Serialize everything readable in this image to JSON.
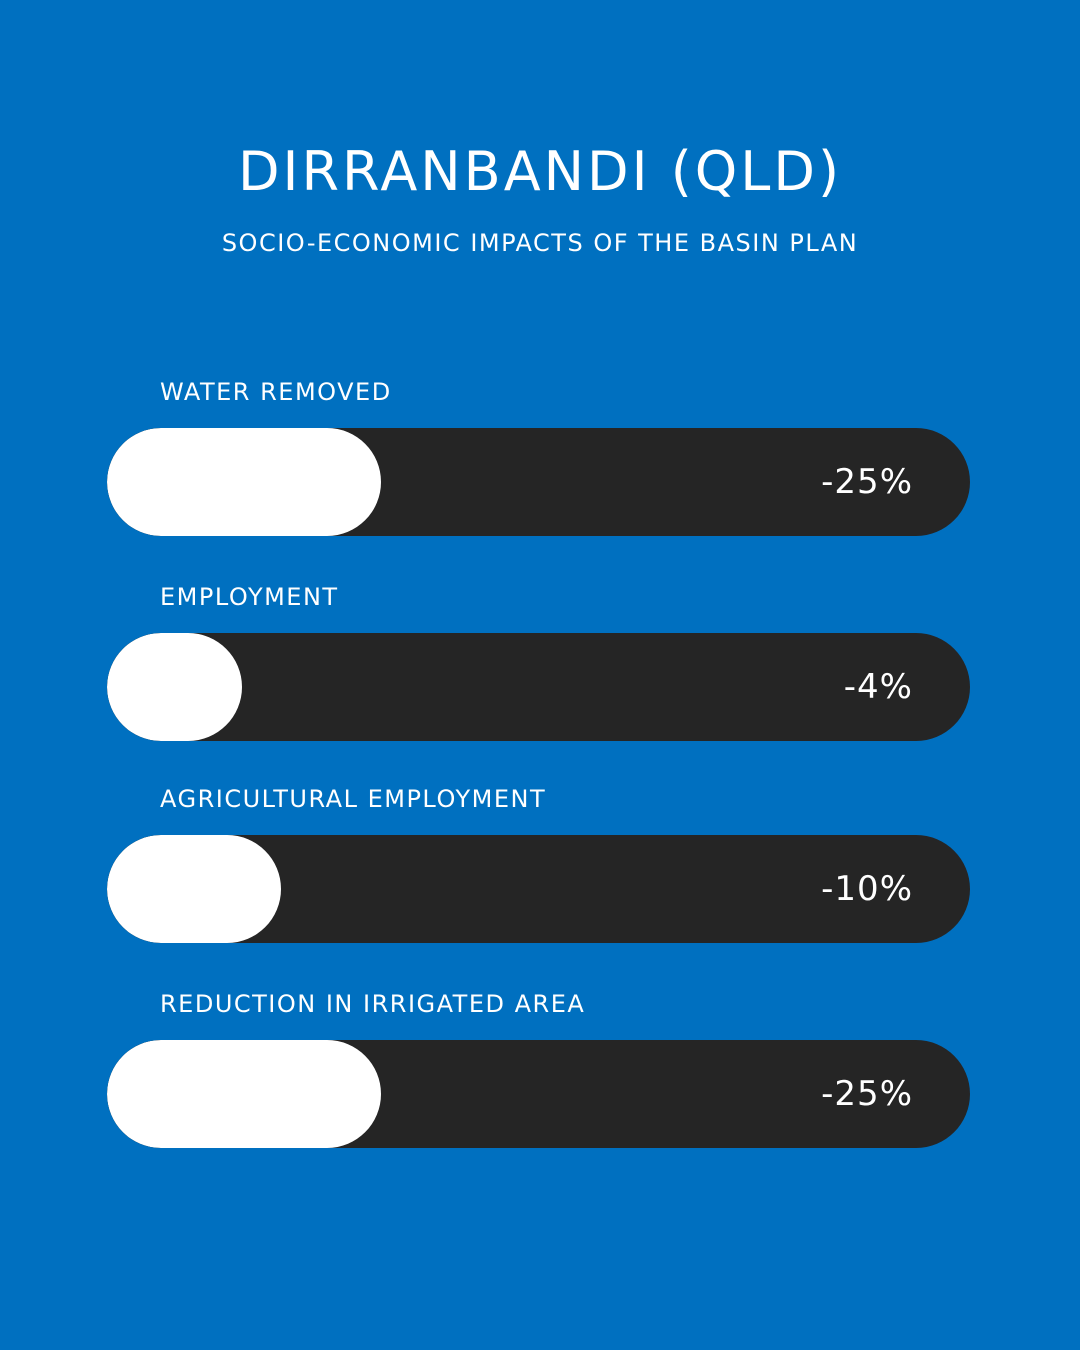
{
  "title": "DIRRANBANDI (QLD)",
  "subtitle": "SOCIO-ECONOMIC IMPACTS OF THE BASIN PLAN",
  "colors": {
    "background": "#0070c0",
    "track": "#252525",
    "fill": "#ffffff",
    "text": "#ffffff"
  },
  "chart_data": {
    "type": "bar",
    "orientation": "horizontal",
    "title": "DIRRANBANDI (QLD)",
    "subtitle": "SOCIO-ECONOMIC IMPACTS OF THE BASIN PLAN",
    "categories": [
      "WATER REMOVED",
      "EMPLOYMENT",
      "AGRICULTURAL EMPLOYMENT",
      "REDUCTION IN IRRIGATED AREA"
    ],
    "values": [
      -25,
      -4,
      -10,
      -25
    ],
    "value_labels": [
      "-25%",
      "-4%",
      "-10%",
      "-25%"
    ],
    "unit": "%",
    "xlim": [
      0,
      100
    ],
    "grid": false,
    "legend": "none"
  }
}
